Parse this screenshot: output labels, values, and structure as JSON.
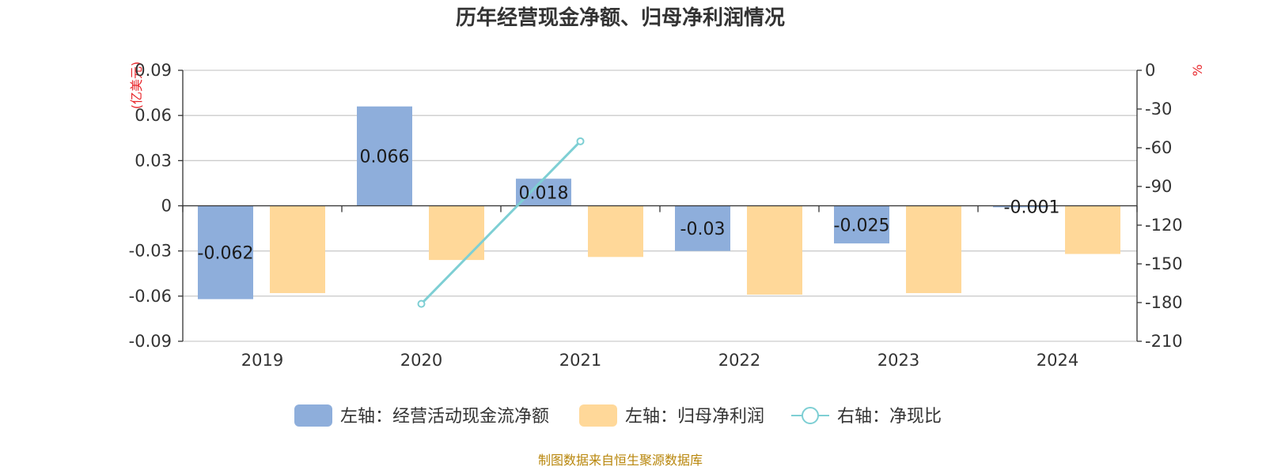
{
  "chart_data": {
    "type": "bar",
    "title": "历年经营现金净额、归母净利润情况",
    "categories": [
      "2019",
      "2020",
      "2021",
      "2022",
      "2023",
      "2024"
    ],
    "left_axis": {
      "unit": "(亿美元)",
      "ticks": [
        "0.09",
        "0.06",
        "0.03",
        "0",
        "-0.03",
        "-0.06",
        "-0.09"
      ],
      "range": [
        -0.09,
        0.09
      ]
    },
    "right_axis": {
      "unit": "%",
      "ticks": [
        "0",
        "-30",
        "-60",
        "-90",
        "-120",
        "-150",
        "-180",
        "-210"
      ],
      "range": [
        -210,
        0
      ]
    },
    "series": [
      {
        "name": "左轴：经营活动现金流净额",
        "type": "bar",
        "axis": "left",
        "color": "#8eaedb",
        "values": [
          -0.062,
          0.066,
          0.018,
          -0.03,
          -0.025,
          -0.001
        ],
        "labels": [
          "-0.062",
          "0.066",
          "0.018",
          "-0.03",
          "-0.025",
          "-0.001"
        ]
      },
      {
        "name": "左轴：归母净利润",
        "type": "bar",
        "axis": "left",
        "color": "#ffd899",
        "values": [
          -0.058,
          -0.036,
          -0.034,
          -0.059,
          -0.058,
          -0.032
        ]
      },
      {
        "name": "右轴：净现比",
        "type": "line",
        "axis": "right",
        "color": "#7ecfd4",
        "values": [
          null,
          -181,
          -55,
          null,
          null,
          null
        ]
      }
    ],
    "grid": true,
    "legend_position": "bottom"
  },
  "source": "制图数据来自恒生聚源数据库"
}
